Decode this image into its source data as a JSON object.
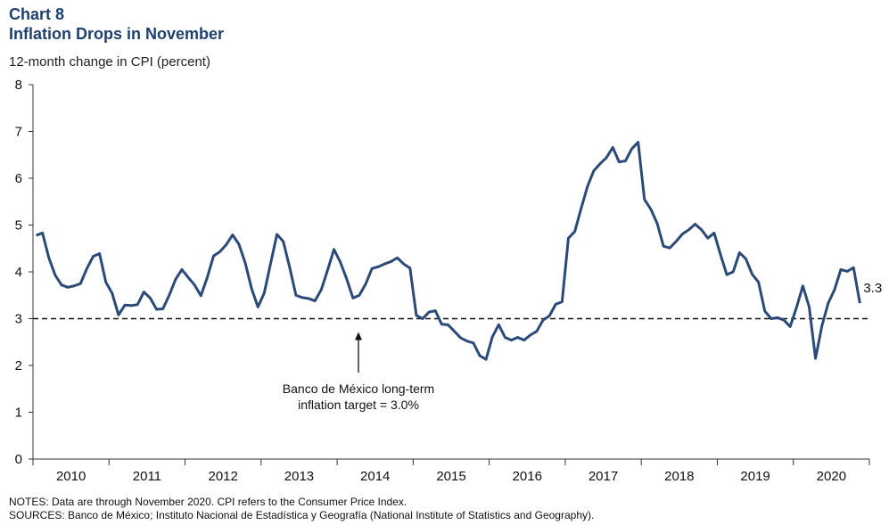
{
  "header": {
    "chart_number": "Chart 8",
    "title": "Inflation Drops in November",
    "ylabel": "12-month change in CPI (percent)"
  },
  "footer": {
    "notes": "NOTES: Data are through November 2020. CPI refers to the Consumer Price Index.",
    "sources": "SOURCES: Banco de México; Instituto Nacional de Estadística y Geografía (National Institute of Statistics and Geography)."
  },
  "colors": {
    "line": "#2b4a78",
    "title": "#1f3f6e",
    "last_label": "#2b4a78"
  },
  "chart_data": {
    "type": "line",
    "title": "Inflation Drops in November",
    "ylabel": "12-month change in CPI (percent)",
    "ylim": [
      0,
      8
    ],
    "yticks": [
      0,
      1,
      2,
      3,
      4,
      5,
      6,
      7,
      8
    ],
    "x_start": "2010-01",
    "x_end": "2020-11",
    "x_tick_labels": [
      "2010",
      "2011",
      "2012",
      "2013",
      "2014",
      "2015",
      "2016",
      "2017",
      "2018",
      "2019",
      "2020"
    ],
    "grid": false,
    "series": [
      {
        "name": "",
        "frequency": "monthly",
        "values": [
          4.78,
          4.83,
          4.3,
          3.93,
          3.72,
          3.67,
          3.7,
          3.75,
          4.07,
          4.33,
          4.39,
          3.78,
          3.54,
          3.08,
          3.29,
          3.28,
          3.3,
          3.57,
          3.44,
          3.2,
          3.21,
          3.5,
          3.84,
          4.05,
          3.88,
          3.72,
          3.49,
          3.88,
          4.34,
          4.43,
          4.58,
          4.79,
          4.59,
          4.19,
          3.64,
          3.25,
          3.55,
          4.18,
          4.8,
          4.65,
          4.1,
          3.5,
          3.45,
          3.43,
          3.38,
          3.62,
          4.04,
          4.48,
          4.21,
          3.85,
          3.44,
          3.5,
          3.74,
          4.07,
          4.11,
          4.17,
          4.22,
          4.3,
          4.17,
          4.08,
          3.07,
          3.0,
          3.14,
          3.17,
          2.88,
          2.87,
          2.73,
          2.59,
          2.52,
          2.48,
          2.21,
          2.13,
          2.61,
          2.87,
          2.6,
          2.54,
          2.6,
          2.54,
          2.65,
          2.73,
          2.97,
          3.06,
          3.31,
          3.36,
          4.72,
          4.86,
          5.35,
          5.82,
          6.16,
          6.31,
          6.44,
          6.66,
          6.35,
          6.37,
          6.63,
          6.77,
          5.55,
          5.34,
          5.04,
          4.55,
          4.51,
          4.65,
          4.81,
          4.9,
          5.02,
          4.9,
          4.72,
          4.83,
          4.37,
          3.94,
          4.0,
          4.41,
          4.28,
          3.95,
          3.78,
          3.16,
          3.0,
          3.02,
          2.97,
          2.83,
          3.24,
          3.7,
          3.25,
          2.15,
          2.84,
          3.33,
          3.62,
          4.05,
          4.01,
          4.09,
          3.33
        ]
      }
    ],
    "reference_line": {
      "value": 3.0,
      "style": "dashed"
    },
    "annotations": [
      {
        "text_line_1": "Banco de México long-term",
        "text_line_2": "inflation target = 3.0%"
      }
    ],
    "last_value_label": "3.3"
  }
}
